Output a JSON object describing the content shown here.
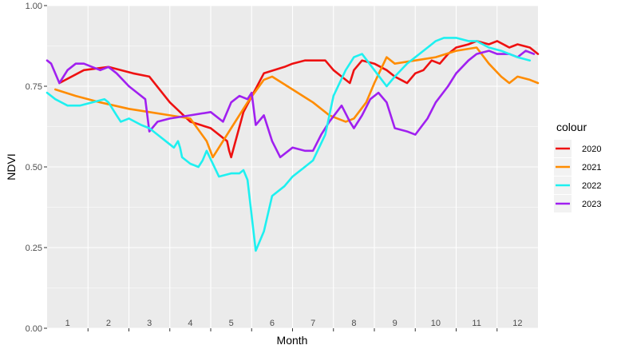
{
  "chart_data": {
    "type": "line",
    "title": "",
    "xlabel": "Month",
    "ylabel": "NDVI",
    "xlim": [
      0.5,
      12.5
    ],
    "ylim": [
      0.0,
      1.0
    ],
    "yticks": [
      0.0,
      0.25,
      0.5,
      0.75,
      1.0
    ],
    "ytick_labels": [
      "0.00",
      "0.25",
      "0.50",
      "0.75",
      "1.00"
    ],
    "xtick_labels": [
      "1",
      "2",
      "3",
      "4",
      "5",
      "6",
      "7",
      "8",
      "9",
      "10",
      "11",
      "12"
    ],
    "grid": true,
    "legend_title": "colour",
    "legend_position": "right",
    "series": [
      {
        "name": "2020",
        "color": "#ee1111",
        "x": [
          0.8,
          1.4,
          2.0,
          2.6,
          3.0,
          3.5,
          4.0,
          4.5,
          4.9,
          4.95,
          5.0,
          5.3,
          5.8,
          6.3,
          6.5,
          6.8,
          7.3,
          7.5,
          7.7,
          7.9,
          8.0,
          8.2,
          8.5,
          8.8,
          9.0,
          9.3,
          9.5,
          9.7,
          9.9,
          10.1,
          10.3,
          10.5,
          10.8,
          11.0,
          11.3,
          11.5,
          11.8,
          12.0,
          12.3,
          12.5
        ],
        "y": [
          0.76,
          0.8,
          0.81,
          0.79,
          0.78,
          0.7,
          0.64,
          0.62,
          0.58,
          0.55,
          0.53,
          0.67,
          0.79,
          0.81,
          0.82,
          0.83,
          0.83,
          0.8,
          0.78,
          0.76,
          0.8,
          0.83,
          0.82,
          0.8,
          0.78,
          0.76,
          0.79,
          0.8,
          0.83,
          0.82,
          0.85,
          0.87,
          0.88,
          0.89,
          0.88,
          0.89,
          0.87,
          0.88,
          0.87,
          0.85
        ]
      },
      {
        "name": "2021",
        "color": "#ff8c00",
        "x": [
          0.7,
          1.2,
          1.8,
          2.5,
          3.0,
          3.5,
          4.0,
          4.4,
          4.55,
          5.0,
          5.4,
          5.8,
          6.0,
          6.5,
          7.0,
          7.4,
          7.8,
          8.0,
          8.3,
          8.5,
          8.8,
          9.0,
          9.5,
          10.0,
          10.5,
          11.0,
          11.3,
          11.6,
          11.8,
          12.0,
          12.3,
          12.5
        ],
        "y": [
          0.74,
          0.72,
          0.7,
          0.68,
          0.67,
          0.66,
          0.65,
          0.58,
          0.53,
          0.62,
          0.7,
          0.77,
          0.78,
          0.74,
          0.7,
          0.66,
          0.64,
          0.65,
          0.7,
          0.76,
          0.84,
          0.82,
          0.83,
          0.84,
          0.86,
          0.87,
          0.82,
          0.78,
          0.76,
          0.78,
          0.77,
          0.76
        ]
      },
      {
        "name": "2023",
        "color": "#a020f0",
        "x": [
          0.5,
          0.6,
          0.8,
          1.0,
          1.2,
          1.4,
          1.6,
          1.8,
          2.0,
          2.2,
          2.5,
          2.7,
          2.9,
          3.0,
          3.2,
          3.5,
          4.0,
          4.5,
          4.8,
          5.0,
          5.2,
          5.4,
          5.5,
          5.6,
          5.8,
          6.0,
          6.2,
          6.5,
          6.8,
          7.0,
          7.2,
          7.4,
          7.7,
          7.9,
          8.0,
          8.2,
          8.4,
          8.6,
          8.8,
          9.0,
          9.3,
          9.5,
          9.8,
          10.0,
          10.3,
          10.5,
          10.8,
          11.0,
          11.3,
          11.5,
          11.8,
          12.0,
          12.2,
          12.4
        ],
        "y": [
          0.83,
          0.82,
          0.76,
          0.8,
          0.82,
          0.82,
          0.81,
          0.8,
          0.81,
          0.79,
          0.75,
          0.73,
          0.71,
          0.61,
          0.64,
          0.65,
          0.66,
          0.67,
          0.64,
          0.7,
          0.72,
          0.71,
          0.73,
          0.63,
          0.66,
          0.58,
          0.53,
          0.56,
          0.55,
          0.55,
          0.6,
          0.64,
          0.69,
          0.64,
          0.62,
          0.66,
          0.71,
          0.73,
          0.7,
          0.62,
          0.61,
          0.6,
          0.65,
          0.7,
          0.75,
          0.79,
          0.83,
          0.85,
          0.86,
          0.85,
          0.85,
          0.84,
          0.86,
          0.85
        ]
      },
      {
        "name": "2022",
        "color": "#1ef0f0",
        "x": [
          0.5,
          0.7,
          1.0,
          1.3,
          1.6,
          1.9,
          2.0,
          2.2,
          2.3,
          2.5,
          2.8,
          3.0,
          3.2,
          3.4,
          3.6,
          3.7,
          3.75,
          3.8,
          4.0,
          4.2,
          4.3,
          4.4,
          4.7,
          5.0,
          5.2,
          5.3,
          5.4,
          5.6,
          5.8,
          6.0,
          6.3,
          6.5,
          6.8,
          7.0,
          7.3,
          7.5,
          7.8,
          8.0,
          8.2,
          8.5,
          8.8,
          9.0,
          9.3,
          9.6,
          9.9,
          10.0,
          10.2,
          10.5,
          10.8,
          11.0,
          11.3,
          11.6,
          12.0,
          12.3
        ],
        "y": [
          0.73,
          0.71,
          0.69,
          0.69,
          0.7,
          0.71,
          0.7,
          0.66,
          0.64,
          0.65,
          0.63,
          0.62,
          0.6,
          0.58,
          0.56,
          0.58,
          0.56,
          0.53,
          0.51,
          0.5,
          0.52,
          0.55,
          0.47,
          0.48,
          0.48,
          0.49,
          0.46,
          0.24,
          0.3,
          0.41,
          0.44,
          0.47,
          0.5,
          0.52,
          0.6,
          0.72,
          0.8,
          0.84,
          0.85,
          0.8,
          0.75,
          0.78,
          0.82,
          0.85,
          0.88,
          0.89,
          0.9,
          0.9,
          0.89,
          0.89,
          0.87,
          0.86,
          0.84,
          0.83
        ]
      }
    ],
    "legend_order": [
      "2020",
      "2021",
      "2022",
      "2023"
    ]
  }
}
